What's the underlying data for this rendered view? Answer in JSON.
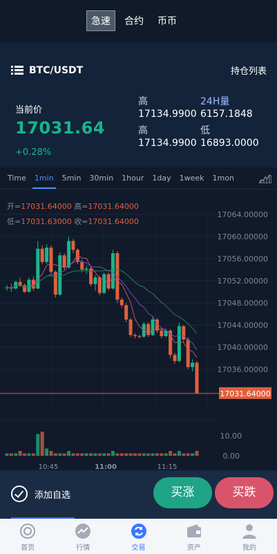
{
  "mode_tabs": [
    {
      "label": "急速",
      "active": true
    },
    {
      "label": "合约",
      "active": false
    },
    {
      "label": "币币",
      "active": false
    }
  ],
  "pair": {
    "name": "BTC/USDT",
    "positions_link": "持仓列表",
    "menu_icon": "list-icon"
  },
  "price": {
    "label": "当前价",
    "value": "17031.64",
    "change": "+0.28%"
  },
  "stats": [
    {
      "label": "高",
      "value": "17134.9900",
      "label_color": "#c7d3e1"
    },
    {
      "label": "24H量",
      "value": "6157.1848",
      "label_color": "#9bbcff"
    },
    {
      "label": "高",
      "value": "17134.9900",
      "label_color": "#c7d3e1"
    },
    {
      "label": "低",
      "value": "16893.0000",
      "label_color": "#c7d3e1"
    }
  ],
  "timeframes": [
    {
      "label": "Time",
      "active": false
    },
    {
      "label": "1min",
      "active": true
    },
    {
      "label": "5min",
      "active": false
    },
    {
      "label": "30min",
      "active": false
    },
    {
      "label": "1hour",
      "active": false
    },
    {
      "label": "1day",
      "active": false
    },
    {
      "label": "1week",
      "active": false
    },
    {
      "label": "1mon",
      "active": false
    }
  ],
  "ohlc": {
    "open_label": "开=",
    "open": "17031.64000",
    "high_label": "高=",
    "high": "17031.64000",
    "low_label": "低=",
    "low": "17031.63000",
    "close_label": "收=",
    "close": "17031.64000"
  },
  "chart_data": {
    "type": "candlestick",
    "y_ticks": [
      "17064.00000",
      "17060.00000",
      "17056.00000",
      "17052.00000",
      "17048.00000",
      "17044.00000",
      "17040.00000",
      "17036.00000"
    ],
    "ylim": [
      17031.64,
      17064
    ],
    "current_price_label": "17031.64000",
    "volume_ticks": [
      "10.00",
      "0.00"
    ],
    "x_ticks": [
      "10:45",
      "11:00",
      "11:15"
    ],
    "candles": [
      [
        17050.8,
        17051.2,
        17050.2,
        17050.8
      ],
      [
        17050.8,
        17051.5,
        17050.0,
        17050.6
      ],
      [
        17050.6,
        17052.0,
        17050.4,
        17051.8
      ],
      [
        17051.8,
        17052.6,
        17051.0,
        17051.2
      ],
      [
        17051.2,
        17051.5,
        17049.8,
        17050.0
      ],
      [
        17050.0,
        17052.6,
        17049.9,
        17052.2
      ],
      [
        17052.2,
        17052.8,
        17050.2,
        17050.6
      ],
      [
        17050.6,
        17059.2,
        17050.5,
        17057.8
      ],
      [
        17057.8,
        17058.4,
        17055.0,
        17055.4
      ],
      [
        17055.4,
        17058.6,
        17055.0,
        17058.0
      ],
      [
        17058.0,
        17058.4,
        17053.2,
        17053.6
      ],
      [
        17053.6,
        17053.9,
        17049.0,
        17049.5
      ],
      [
        17049.5,
        17057.2,
        17049.3,
        17056.6
      ],
      [
        17056.6,
        17057.0,
        17054.0,
        17054.4
      ],
      [
        17054.4,
        17060.0,
        17054.2,
        17059.2
      ],
      [
        17059.2,
        17059.6,
        17057.0,
        17057.6
      ],
      [
        17057.6,
        17057.9,
        17055.0,
        17055.4
      ],
      [
        17055.4,
        17055.8,
        17053.5,
        17054.0
      ],
      [
        17054.0,
        17054.8,
        17053.2,
        17054.2
      ],
      [
        17054.2,
        17054.5,
        17051.0,
        17051.4
      ],
      [
        17051.4,
        17053.0,
        17050.2,
        17052.6
      ],
      [
        17052.6,
        17052.9,
        17049.4,
        17049.8
      ],
      [
        17049.8,
        17053.5,
        17049.6,
        17053.2
      ],
      [
        17053.2,
        17053.5,
        17050.2,
        17050.6
      ],
      [
        17050.6,
        17057.6,
        17050.4,
        17057.0
      ],
      [
        17057.0,
        17057.4,
        17048.0,
        17048.6
      ],
      [
        17048.6,
        17049.0,
        17047.2,
        17047.6
      ],
      [
        17047.6,
        17048.0,
        17044.5,
        17045.0
      ],
      [
        17045.0,
        17045.3,
        17041.8,
        17042.2
      ],
      [
        17042.2,
        17042.5,
        17041.6,
        17042.0
      ],
      [
        17042.0,
        17042.3,
        17041.6,
        17041.9
      ],
      [
        17041.9,
        17044.6,
        17041.7,
        17044.2
      ],
      [
        17044.2,
        17044.5,
        17041.8,
        17042.2
      ],
      [
        17042.2,
        17045.5,
        17042.0,
        17045.0
      ],
      [
        17045.0,
        17045.3,
        17042.6,
        17043.0
      ],
      [
        17043.0,
        17043.5,
        17041.6,
        17042.0
      ],
      [
        17042.0,
        17043.4,
        17041.8,
        17043.0
      ],
      [
        17043.0,
        17043.3,
        17038.0,
        17038.6
      ],
      [
        17038.6,
        17039.0,
        17037.0,
        17037.5
      ],
      [
        17037.5,
        17044.4,
        17037.3,
        17043.8
      ],
      [
        17043.8,
        17044.0,
        17041.0,
        17041.4
      ],
      [
        17041.4,
        17041.8,
        17036.0,
        17036.4
      ],
      [
        17036.4,
        17037.8,
        17035.6,
        17037.2
      ],
      [
        17037.2,
        17037.5,
        17031.64,
        17031.64
      ]
    ]
  },
  "actions": {
    "watchlist_label": "添加自选",
    "buy_label": "买涨",
    "sell_label": "买跌"
  },
  "nav": [
    {
      "label": "首页",
      "icon": "home-icon",
      "active": false
    },
    {
      "label": "行情",
      "icon": "market-icon",
      "active": false
    },
    {
      "label": "交易",
      "icon": "trade-icon",
      "active": true
    },
    {
      "label": "资产",
      "icon": "wallet-icon",
      "active": false
    },
    {
      "label": "我的",
      "icon": "user-icon",
      "active": false
    }
  ],
  "colors": {
    "up": "#19b58a",
    "down": "#e0603e",
    "accent": "#3a78ff",
    "background": "#0f1a2c"
  }
}
